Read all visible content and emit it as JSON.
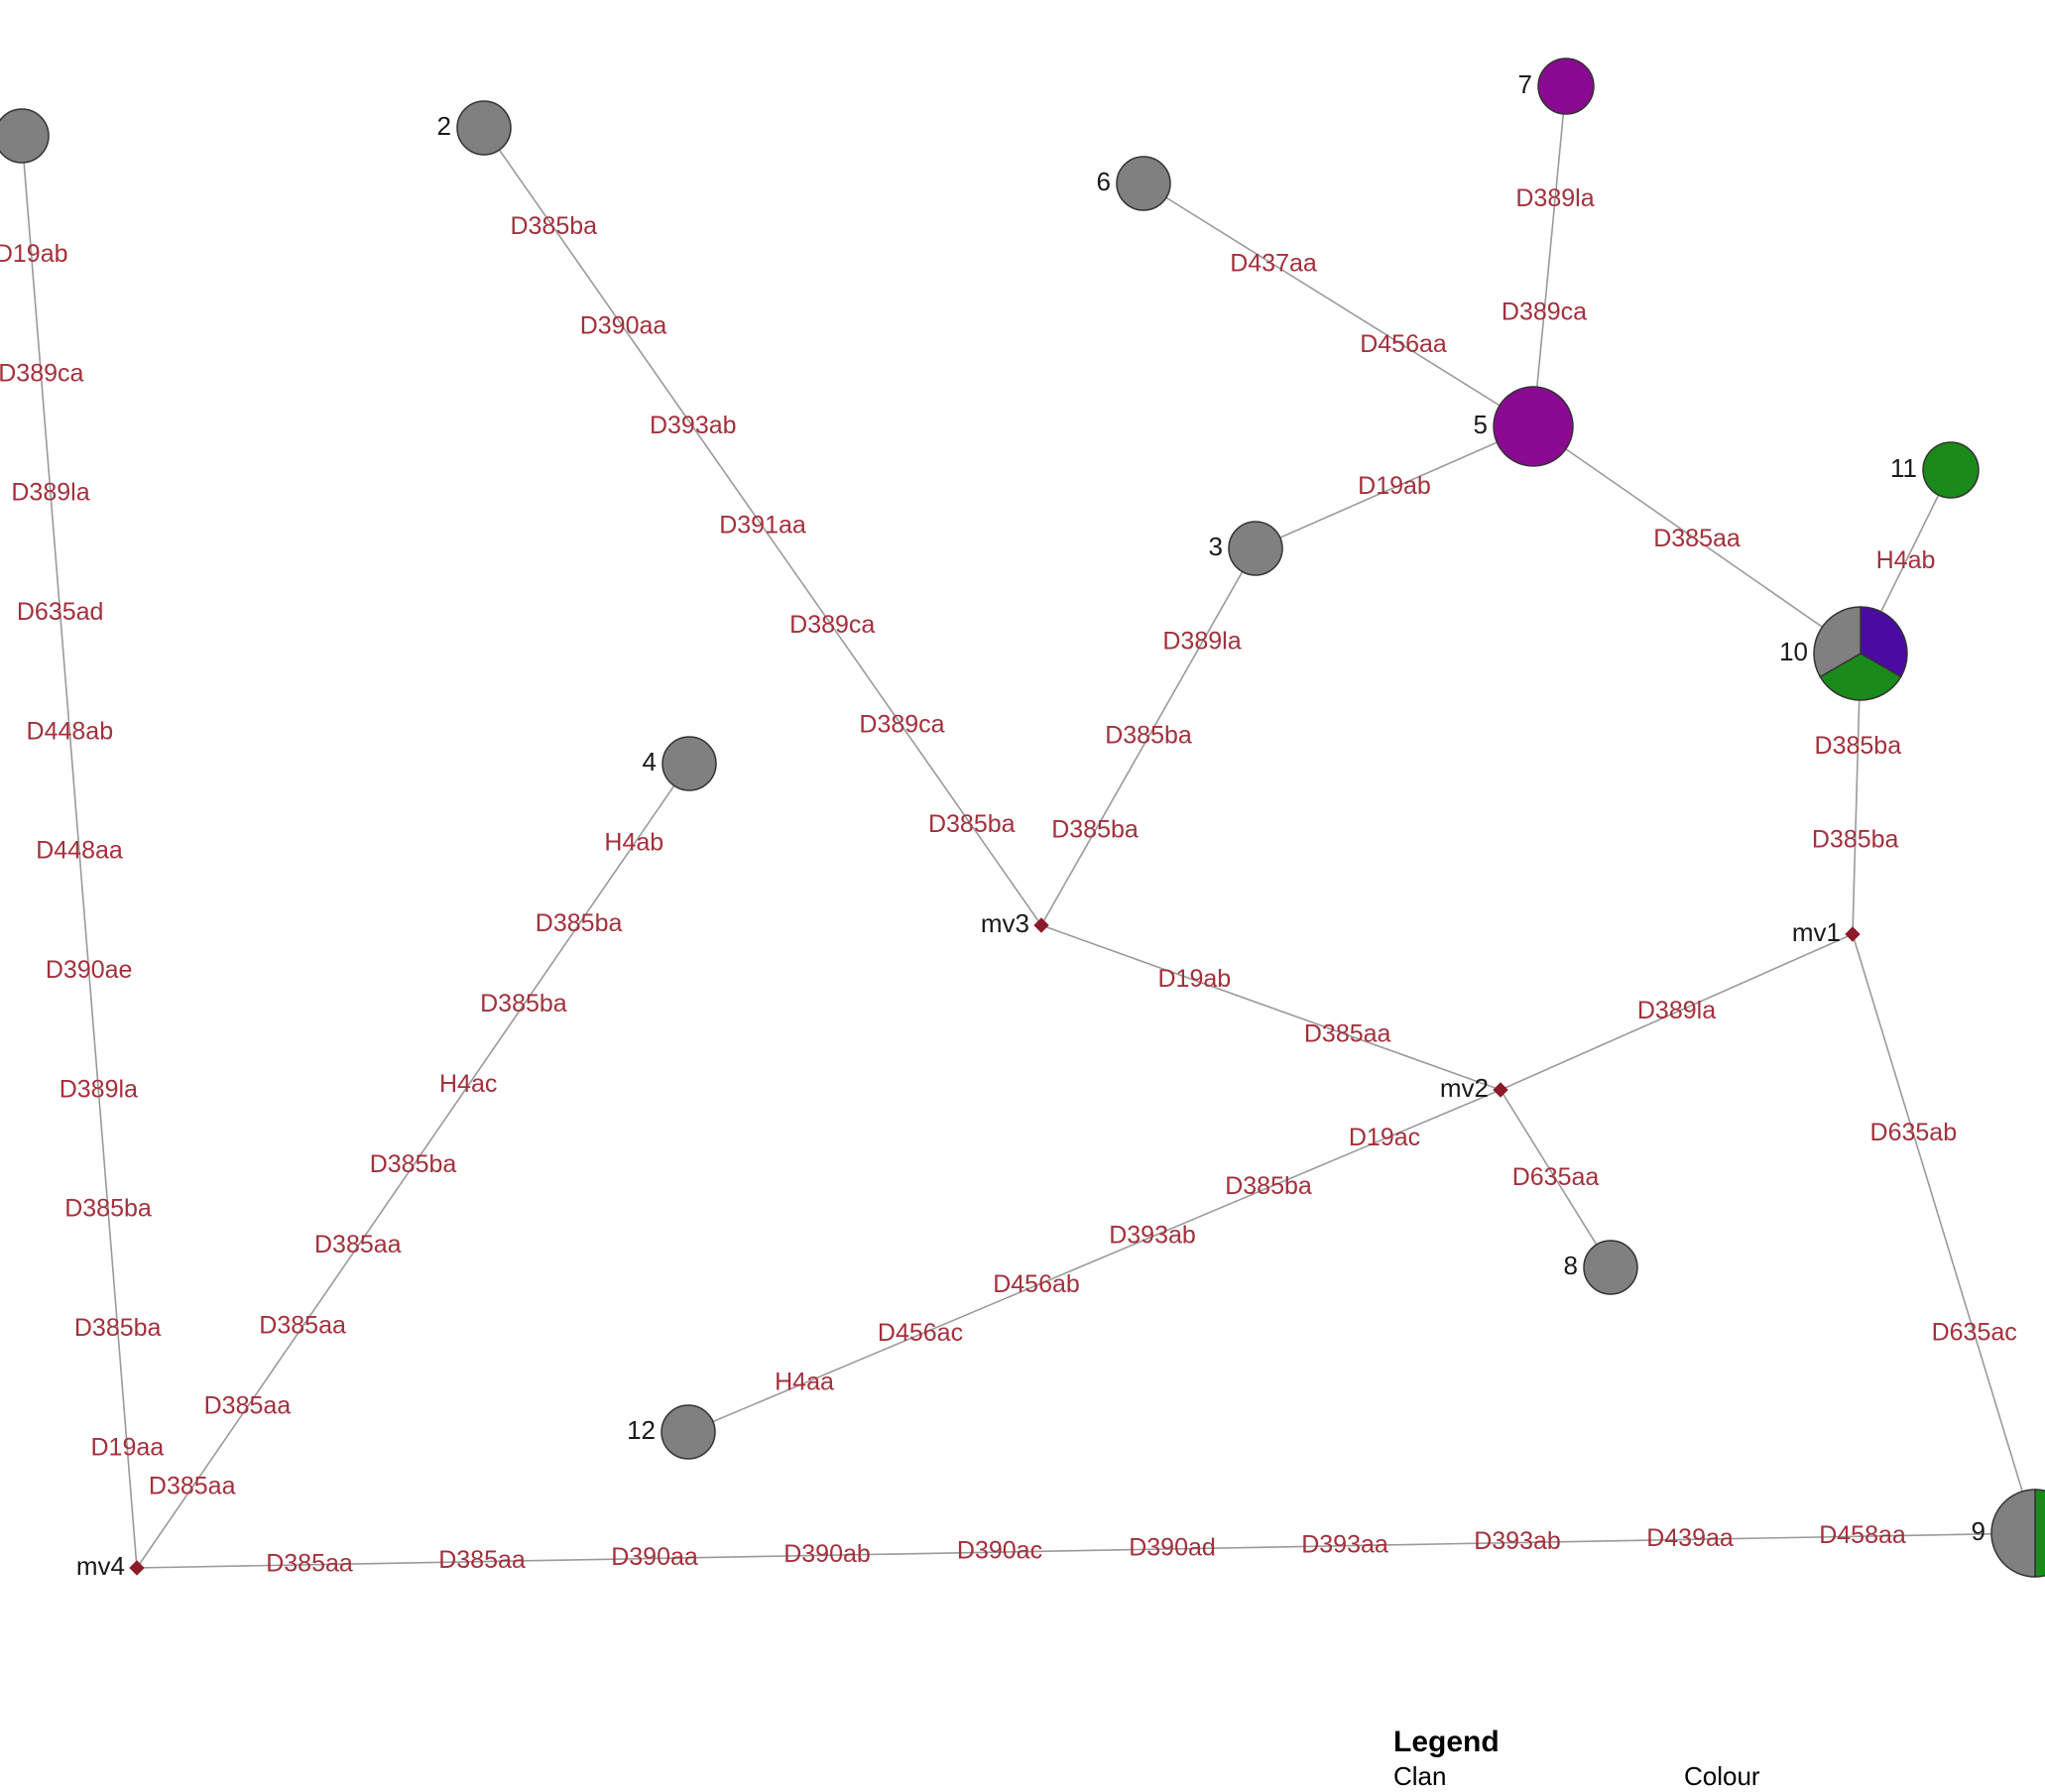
{
  "colors": {
    "grey": "#808080",
    "purple": "#8a0a91",
    "green": "#1a8a1a",
    "indigo": "#4b0aa0",
    "label": "#a3303c",
    "edge": "#9a9a9a"
  },
  "nodes": [
    {
      "id": "1",
      "label": "",
      "kind": "haplotype",
      "color": "grey"
    },
    {
      "id": "2",
      "label": "2",
      "kind": "haplotype",
      "color": "grey"
    },
    {
      "id": "3",
      "label": "3",
      "kind": "haplotype",
      "color": "grey"
    },
    {
      "id": "4",
      "label": "4",
      "kind": "haplotype",
      "color": "grey"
    },
    {
      "id": "5",
      "label": "5",
      "kind": "haplotype",
      "color": "purple"
    },
    {
      "id": "6",
      "label": "6",
      "kind": "haplotype",
      "color": "grey"
    },
    {
      "id": "7",
      "label": "7",
      "kind": "haplotype",
      "color": "purple"
    },
    {
      "id": "8",
      "label": "8",
      "kind": "haplotype",
      "color": "grey"
    },
    {
      "id": "9",
      "label": "9",
      "kind": "haplotype",
      "pie": [
        "green",
        "grey"
      ]
    },
    {
      "id": "10",
      "label": "10",
      "kind": "haplotype",
      "pie": [
        "indigo",
        "green",
        "grey"
      ]
    },
    {
      "id": "11",
      "label": "11",
      "kind": "haplotype",
      "color": "green"
    },
    {
      "id": "12",
      "label": "12",
      "kind": "haplotype",
      "color": "grey"
    },
    {
      "id": "mv1",
      "label": "mv1",
      "kind": "median"
    },
    {
      "id": "mv2",
      "label": "mv2",
      "kind": "median"
    },
    {
      "id": "mv3",
      "label": "mv3",
      "kind": "median"
    },
    {
      "id": "mv4",
      "label": "mv4",
      "kind": "median"
    }
  ],
  "edges": [
    {
      "from": "1",
      "to": "mv4",
      "mutations": [
        "D19ab",
        "D389ca",
        "D389la",
        "D635ad",
        "D448ab",
        "D448aa",
        "D390ae",
        "D389la",
        "D385ba",
        "D385ba",
        "D19aa"
      ]
    },
    {
      "from": "2",
      "to": "mv3",
      "mutations": [
        "D385ba",
        "D390aa",
        "D393ab",
        "D391aa",
        "D389ca",
        "D389ca",
        "D385ba"
      ]
    },
    {
      "from": "6",
      "to": "5",
      "mutations": [
        "D437aa",
        "D456aa"
      ]
    },
    {
      "from": "7",
      "to": "5",
      "mutations": [
        "D389la",
        "D389ca"
      ]
    },
    {
      "from": "5",
      "to": "3",
      "mutations": [
        "D19ab"
      ]
    },
    {
      "from": "5",
      "to": "10",
      "mutations": [
        "D385aa"
      ]
    },
    {
      "from": "11",
      "to": "10",
      "mutations": [
        "H4ab"
      ]
    },
    {
      "from": "3",
      "to": "mv3",
      "mutations": [
        "D389la",
        "D385ba",
        "D385ba"
      ]
    },
    {
      "from": "10",
      "to": "mv1",
      "mutations": [
        "D385ba",
        "D385ba"
      ]
    },
    {
      "from": "4",
      "to": "mv4",
      "mutations": [
        "H4ab",
        "D385ba",
        "D385ba",
        "H4ac",
        "D385ba",
        "D385aa",
        "D385aa",
        "D385aa",
        "D385aa"
      ]
    },
    {
      "from": "mv3",
      "to": "mv2",
      "mutations": [
        "D19ab",
        "D385aa"
      ]
    },
    {
      "from": "mv2",
      "to": "mv1",
      "mutations": [
        "D389la"
      ]
    },
    {
      "from": "mv2",
      "to": "8",
      "mutations": [
        "D635aa"
      ]
    },
    {
      "from": "mv2",
      "to": "12",
      "mutations": [
        "D19ac",
        "D385ba",
        "D393ab",
        "D456ab",
        "D456ac",
        "H4aa"
      ]
    },
    {
      "from": "mv1",
      "to": "9",
      "mutations": [
        "D635ab",
        "D635ac"
      ]
    },
    {
      "from": "mv4",
      "to": "9",
      "mutations": [
        "D385aa",
        "D385aa",
        "D390aa",
        "D390ab",
        "D390ac",
        "D390ad",
        "D393aa",
        "D393ab",
        "D439aa",
        "D458aa"
      ]
    }
  ],
  "legend": {
    "title": "Legend",
    "col_clan": "Clan",
    "col_colour": "Colour"
  }
}
